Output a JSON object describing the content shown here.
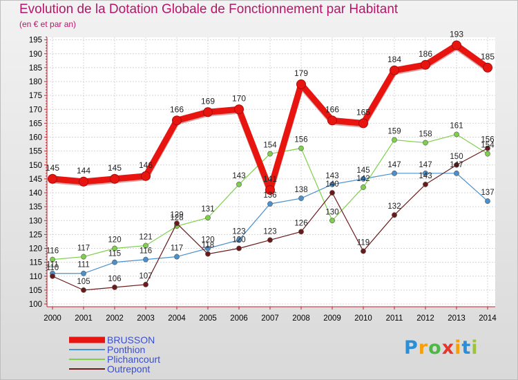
{
  "header": {
    "title": "Evolution de la Dotation Globale de Fonctionnement par Habitant",
    "subtitle": "(en € et par an)"
  },
  "logo": {
    "letters": [
      "P",
      "r",
      "o",
      "x",
      "i",
      "t",
      "i"
    ],
    "colors": [
      "#2a8fd8",
      "#f5a00a",
      "#4db846",
      "#e8352a",
      "#f5a00a",
      "#2a8fd8",
      "#9dc23b"
    ]
  },
  "chart_data": {
    "type": "line",
    "title": "Evolution de la Dotation Globale de Fonctionnement par Habitant",
    "subtitle": "(en € et par an)",
    "xlabel": "",
    "ylabel": "",
    "categories": [
      "2000",
      "2001",
      "2002",
      "2003",
      "2004",
      "2005",
      "2006",
      "2007",
      "2008",
      "2009",
      "2010",
      "2011",
      "2012",
      "2013",
      "2014"
    ],
    "ylim": [
      100,
      196
    ],
    "yticks": [
      100,
      105,
      110,
      115,
      120,
      125,
      130,
      135,
      140,
      145,
      150,
      155,
      160,
      165,
      170,
      175,
      180,
      185,
      190,
      195
    ],
    "grid": true,
    "legend_position": "bottom-left",
    "series": [
      {
        "name": "BRUSSON",
        "color": "#e8140f",
        "emphasis": true,
        "values": [
          145,
          144,
          145,
          146,
          166,
          169,
          170,
          141,
          179,
          166,
          165,
          184,
          186,
          193,
          185
        ]
      },
      {
        "name": "Ponthion",
        "color": "#4a90cc",
        "values": [
          111,
          111,
          115,
          116,
          117,
          120,
          123,
          136,
          138,
          143,
          145,
          147,
          147,
          147,
          137
        ]
      },
      {
        "name": "Plichancourt",
        "color": "#7ed04a",
        "values": [
          116,
          117,
          120,
          121,
          128,
          131,
          143,
          154,
          156,
          130,
          142,
          159,
          158,
          161,
          154
        ]
      },
      {
        "name": "Outrepont",
        "color": "#6b1a1a",
        "values": [
          110,
          105,
          106,
          107,
          129,
          118,
          120,
          123,
          126,
          140,
          119,
          132,
          143,
          150,
          156
        ]
      }
    ]
  }
}
